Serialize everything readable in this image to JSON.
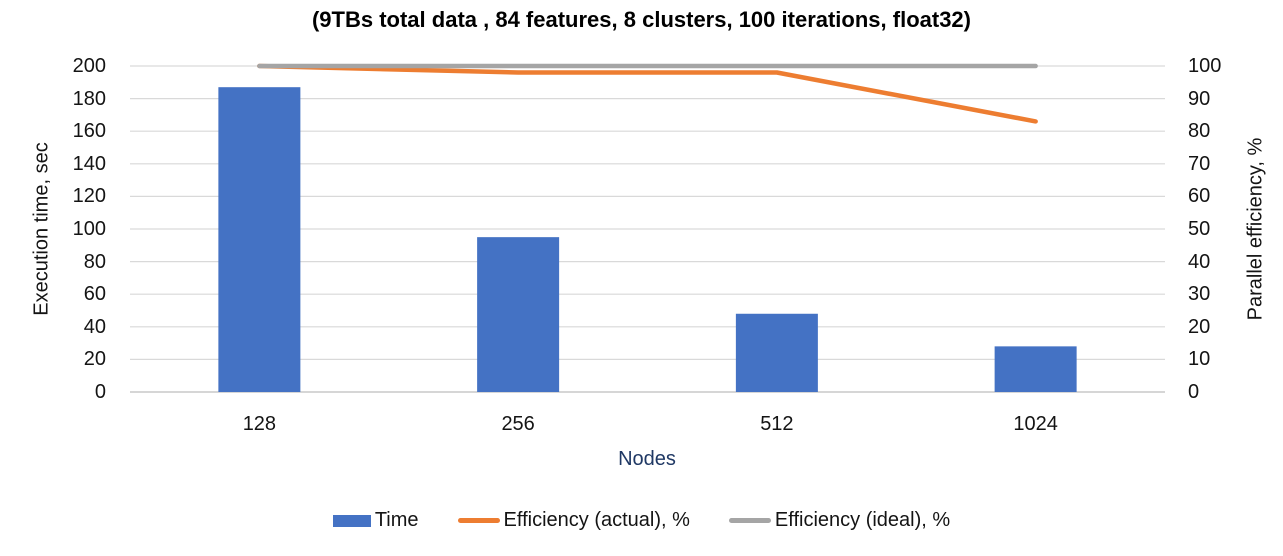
{
  "title": "(9TBs total data , 84 features, 8 clusters, 100 iterations, float32)",
  "chart_data": {
    "type": "bar",
    "combo": "bar+line, dual y-axes",
    "categories": [
      "128",
      "256",
      "512",
      "1024"
    ],
    "series": [
      {
        "name": "Time",
        "type": "bar",
        "axis": "left",
        "color": "#4472C4",
        "values": [
          187,
          95,
          48,
          28
        ]
      },
      {
        "name": "Efficiency (actual), %",
        "type": "line",
        "axis": "right",
        "color": "#ED7D31",
        "values": [
          100,
          98,
          98,
          83
        ]
      },
      {
        "name": "Efficiency (ideal), %",
        "type": "line",
        "axis": "right",
        "color": "#A5A5A5",
        "values": [
          100,
          100,
          100,
          100
        ]
      }
    ],
    "title": "(9TBs total data , 84 features, 8 clusters, 100 iterations, float32)",
    "xlabel": "Nodes",
    "ylabel_left": "Execution time, sec",
    "ylabel_right": "Parallel efficiency, %",
    "ylim_left": [
      0,
      200
    ],
    "ytick_step_left": 20,
    "ylim_right": [
      0,
      100
    ],
    "ytick_step_right": 10,
    "grid": true,
    "legend_position": "bottom"
  },
  "colors": {
    "bar_blue": "#4472C4",
    "line_orange": "#ED7D31",
    "line_gray": "#A5A5A5",
    "gridline": "#D9D9D9",
    "axis_line": "#C9C9C9",
    "tick_text": "#141414",
    "title_text": "#000000",
    "xlabel_navy": "#1F3864",
    "background": "#FFFFFF"
  }
}
